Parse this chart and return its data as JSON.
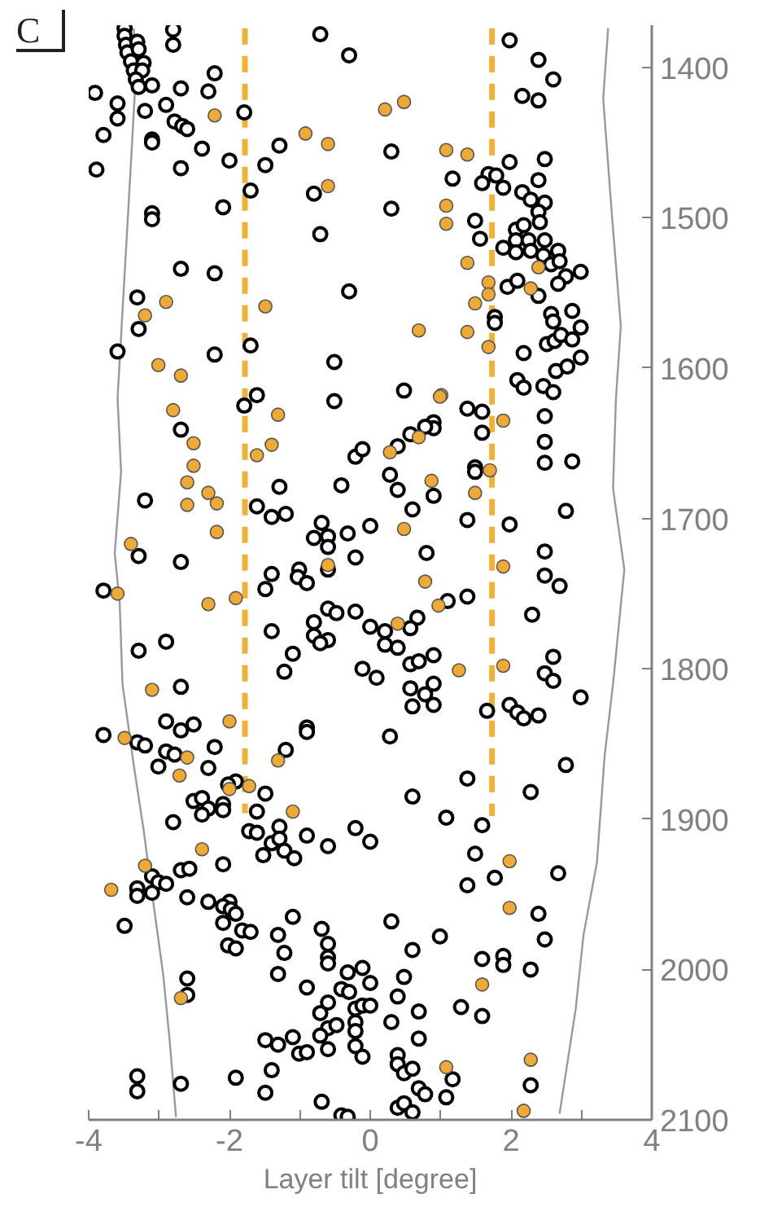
{
  "chart_data": {
    "type": "scatter",
    "xlabel": "Layer tilt [degree]",
    "annotations": [
      "C"
    ],
    "xlim": [
      -4,
      4
    ],
    "ylim": [
      2100,
      1372
    ],
    "xticks": [
      -4,
      {
        "value": -3,
        "label": null
      },
      -2,
      {
        "value": -1,
        "label": null
      },
      0,
      {
        "value": 1,
        "label": null
      },
      2,
      {
        "value": 3,
        "label": null
      },
      4
    ],
    "yticks": [
      1400,
      1500,
      1600,
      1700,
      1800,
      1900,
      2000,
      2100
    ],
    "grid": false,
    "marker": "circle",
    "series": [
      {
        "type": "line",
        "marker": "none",
        "color": "#999999",
        "line_style": "solid",
        "x": [
          -3.36,
          -3.33,
          -3.4,
          -3.59,
          -3.54,
          -3.63,
          -3.56,
          -3.52,
          -3.36,
          -3.22,
          -3.13,
          -2.94,
          -2.85,
          -2.76
        ],
        "values": [
          1374,
          1404,
          1464,
          1620,
          1669,
          1723,
          1756,
          1810,
          1864,
          1907,
          1939,
          2004,
          2047,
          2098
        ]
      },
      {
        "type": "line",
        "marker": "none",
        "color": "#999999",
        "line_style": "solid",
        "x": [
          3.38,
          3.31,
          3.43,
          3.56,
          3.49,
          3.45,
          3.61,
          3.45,
          3.33,
          3.22,
          3.03,
          2.92,
          2.69
        ],
        "values": [
          1374,
          1421,
          1496,
          1572,
          1621,
          1680,
          1734,
          1810,
          1858,
          1929,
          1977,
          2026,
          2096
        ]
      },
      {
        "type": "line",
        "marker": "none",
        "color": "#f2b035",
        "line_style": "dashed",
        "x": [
          -1.78,
          -1.78
        ],
        "values": [
          1374,
          1896
        ]
      },
      {
        "type": "line",
        "marker": "none",
        "color": "#f2b035",
        "line_style": "dashed",
        "x": [
          1.73,
          1.73
        ],
        "values": [
          1374,
          1898
        ]
      },
      {
        "color": "#000000",
        "x": [
          -3.49,
          -3.49,
          -3.47,
          -3.31,
          -3.45,
          -3.29,
          -3.4,
          -3.22,
          -3.36,
          -3.24,
          -3.33,
          -3.29,
          -3.1,
          -2.8,
          -2.8,
          -2.21,
          -2.69,
          -2.3,
          -3.91,
          -3.59,
          -3.59,
          -3.2,
          -2.9,
          -2.78,
          -2.67,
          -2.6,
          -1.79,
          -3.79,
          -3.1,
          -3.1,
          -2.39,
          -2.0,
          -1.29,
          -1.49,
          -3.89,
          -2.69,
          -1.7,
          -0.8,
          -2.09,
          -3.1,
          -3.1,
          -0.71,
          -2.69,
          -2.21,
          -0.3,
          -3.31,
          -3.29,
          -3.59,
          -2.21,
          -1.7,
          -0.51,
          -0.71,
          -0.3,
          1.98,
          2.39,
          2.6,
          2.16,
          2.39,
          0.3,
          1.17,
          1.68,
          1.79,
          1.59,
          1.89,
          1.98,
          2.48,
          2.39,
          2.16,
          2.28,
          2.48,
          0.3,
          1.49,
          2.39,
          2.41,
          2.07,
          2.18,
          1.56,
          1.89,
          2.07,
          2.25,
          2.48,
          2.07,
          2.28,
          2.46,
          2.67,
          2.57,
          2.69,
          2.78,
          2.99,
          2.67,
          1.95,
          2.09,
          2.39,
          2.57,
          2.6,
          2.87,
          1.77,
          1.77,
          2.99,
          2.51,
          2.62,
          2.71,
          2.87,
          2.18,
          2.64,
          2.8,
          2.99,
          2.09,
          2.18,
          2.46,
          2.6,
          0.48,
          -1.61,
          -1.79,
          -0.51,
          -2.69,
          -0.21,
          -0.11,
          -0.41,
          -1.29,
          -3.2,
          -1.61,
          -1.4,
          -1.2,
          -0.69,
          -0.8,
          -0.6,
          -0.6,
          -0.6,
          -0.32,
          0.0,
          -0.21,
          -3.29,
          -2.69,
          -1.4,
          -1.49,
          -1.01,
          -1.03,
          -0.9,
          -3.79,
          -0.6,
          -0.48,
          -0.21,
          0.0,
          -0.8,
          -1.4,
          -0.8,
          -0.6,
          -0.71,
          -3.29,
          -2.9,
          -1.1,
          -1.22,
          -0.11,
          0.09,
          -2.69,
          -3.79,
          -2.9,
          -2.69,
          -2.51,
          -3.31,
          -3.2,
          -2.21,
          -2.9,
          -2.78,
          -3.01,
          -2.3,
          -0.9,
          -0.9,
          -1.2,
          1.38,
          1.59,
          0.9,
          0.9,
          0.78,
          0.57,
          0.39,
          2.48,
          2.48,
          2.48,
          2.87,
          1.59,
          1.49,
          1.49,
          0.28,
          0.39,
          0.9,
          0.6,
          1.38,
          1.98,
          2.78,
          0.8,
          2.48,
          2.48,
          2.69,
          1.1,
          1.38,
          2.3,
          0.67,
          0.57,
          0.21,
          0.21,
          0.39,
          0.57,
          0.69,
          0.9,
          0.57,
          0.9,
          0.78,
          0.6,
          0.9,
          2.6,
          2.48,
          2.6,
          2.99,
          1.66,
          1.98,
          2.09,
          2.18,
          2.39,
          0.28,
          2.78,
          -1.91,
          -2.02,
          -1.49,
          -2.51,
          -2.39,
          -2.3,
          -2.09,
          -2.09,
          -2.39,
          -1.61,
          -2.8,
          -1.72,
          -1.61,
          -1.29,
          -1.4,
          -1.29,
          -1.52,
          -1.22,
          -1.08,
          -0.9,
          -0.6,
          -0.21,
          0.0,
          -2.09,
          -2.69,
          -2.57,
          -3.1,
          -3.01,
          -2.9,
          -3.31,
          -3.31,
          -3.1,
          -2.6,
          -2.3,
          -2.0,
          -2.09,
          -1.98,
          -1.91,
          -2.09,
          -3.49,
          -1.1,
          -1.82,
          -1.7,
          -1.31,
          -1.22,
          -0.69,
          -0.6,
          -0.6,
          -0.6,
          -2.02,
          -1.91,
          -1.31,
          -0.9,
          -0.32,
          -0.11,
          0.0,
          -0.41,
          -0.3,
          -2.6,
          -2.6,
          -0.6,
          -0.71,
          -0.6,
          -0.48,
          -0.71,
          -0.21,
          -0.11,
          -0.21,
          -0.21,
          -0.21,
          -0.11,
          -0.6,
          -1.49,
          -1.31,
          -1.1,
          -1.01,
          -0.9,
          -1.4,
          -1.49,
          -1.91,
          -2.69,
          -3.31,
          -3.31,
          -0.69,
          -0.41,
          -0.32,
          1.38,
          2.28,
          0.6,
          1.08,
          1.59,
          1.49,
          2.67,
          1.77,
          1.38,
          2.39,
          2.48,
          0.3,
          0.99,
          0.6,
          1.59,
          1.89,
          1.89,
          2.28,
          0.48,
          0.0,
          0.39,
          0.3,
          0.69,
          1.29,
          1.59,
          0.69,
          0.39,
          0.39,
          0.48,
          0.6,
          1.17,
          0.69,
          0.78,
          1.08,
          2.28,
          0.39,
          0.48,
          0.6
        ],
        "values": [
          1374,
          1379,
          1385,
          1383,
          1390,
          1388,
          1396,
          1397,
          1402,
          1402,
          1408,
          1413,
          1412,
          1375,
          1385,
          1404,
          1414,
          1416,
          1417,
          1424,
          1434,
          1429,
          1425,
          1436,
          1439,
          1441,
          1430,
          1445,
          1448,
          1450,
          1454,
          1462,
          1452,
          1465,
          1468,
          1467,
          1482,
          1484,
          1493,
          1497,
          1501,
          1511,
          1534,
          1537,
          1549,
          1553,
          1574,
          1589,
          1591,
          1585,
          1596,
          1378,
          1392,
          1382,
          1395,
          1408,
          1419,
          1422,
          1456,
          1474,
          1471,
          1472,
          1477,
          1480,
          1463,
          1461,
          1475,
          1483,
          1488,
          1490,
          1494,
          1502,
          1496,
          1503,
          1508,
          1505,
          1514,
          1520,
          1515,
          1515,
          1515,
          1523,
          1522,
          1525,
          1522,
          1531,
          1529,
          1539,
          1536,
          1544,
          1546,
          1542,
          1552,
          1564,
          1569,
          1562,
          1566,
          1570,
          1573,
          1584,
          1582,
          1578,
          1581,
          1590,
          1602,
          1599,
          1593,
          1608,
          1613,
          1612,
          1616,
          1615,
          1618,
          1625,
          1622,
          1641,
          1659,
          1654,
          1678,
          1679,
          1688,
          1692,
          1699,
          1697,
          1703,
          1713,
          1712,
          1719,
          1734,
          1710,
          1705,
          1726,
          1725,
          1729,
          1737,
          1747,
          1734,
          1739,
          1743,
          1748,
          1760,
          1763,
          1762,
          1772,
          1769,
          1775,
          1778,
          1781,
          1783,
          1788,
          1782,
          1790,
          1802,
          1800,
          1806,
          1812,
          1844,
          1835,
          1841,
          1837,
          1849,
          1851,
          1852,
          1855,
          1857,
          1865,
          1866,
          1839,
          1842,
          1854,
          1627,
          1629,
          1636,
          1640,
          1639,
          1644,
          1652,
          1632,
          1649,
          1663,
          1662,
          1643,
          1666,
          1669,
          1671,
          1681,
          1685,
          1694,
          1701,
          1704,
          1695,
          1723,
          1722,
          1738,
          1745,
          1755,
          1752,
          1764,
          1766,
          1773,
          1775,
          1784,
          1786,
          1797,
          1795,
          1791,
          1813,
          1810,
          1817,
          1825,
          1824,
          1792,
          1803,
          1808,
          1819,
          1828,
          1824,
          1829,
          1833,
          1831,
          1845,
          1864,
          1875,
          1877,
          1883,
          1888,
          1886,
          1893,
          1890,
          1894,
          1897,
          1895,
          1902,
          1908,
          1909,
          1905,
          1916,
          1913,
          1924,
          1921,
          1926,
          1911,
          1918,
          1906,
          1915,
          1930,
          1934,
          1933,
          1938,
          1942,
          1943,
          1946,
          1951,
          1949,
          1952,
          1955,
          1955,
          1958,
          1960,
          1963,
          1969,
          1971,
          1965,
          1974,
          1975,
          1977,
          1989,
          1973,
          1983,
          1992,
          1996,
          1984,
          1986,
          2003,
          2012,
          2002,
          1999,
          2009,
          2013,
          2015,
          2006,
          2017,
          2022,
          2029,
          2039,
          2037,
          2044,
          2026,
          2024,
          2035,
          2041,
          2051,
          2058,
          2053,
          2047,
          2050,
          2045,
          2056,
          2055,
          2067,
          2082,
          2072,
          2076,
          2071,
          2081,
          2088,
          2097,
          2098,
          1873,
          1882,
          1885,
          1899,
          1904,
          1923,
          1936,
          1939,
          1944,
          1963,
          1980,
          1968,
          1978,
          1987,
          1993,
          1991,
          1997,
          2000,
          2005,
          2024,
          2018,
          2035,
          2028,
          2025,
          2031,
          2046,
          2057,
          2063,
          2069,
          2066,
          2073,
          2079,
          2083,
          2085,
          2077,
          2092,
          2089,
          2095
        ]
      },
      {
        "color": "#eeaa35",
        "x": [
          -2.21,
          -0.92,
          -0.6,
          -0.6,
          -2.9,
          -3.2,
          -1.49,
          -3.01,
          -2.69,
          0.21,
          0.48,
          1.08,
          1.38,
          1.08,
          1.08,
          1.38,
          2.39,
          1.68,
          2.28,
          1.49,
          1.68,
          0.69,
          1.38,
          1.68,
          1.01,
          -2.8,
          -2.51,
          -2.51,
          -1.31,
          -1.4,
          -1.61,
          -2.6,
          -2.3,
          -2.18,
          -2.6,
          -2.18,
          -3.4,
          -0.6,
          -3.59,
          -2.3,
          -1.91,
          -3.1,
          -2.0,
          -3.49,
          -2.6,
          -1.31,
          0.99,
          1.89,
          0.28,
          0.69,
          0.87,
          1.49,
          1.7,
          0.48,
          1.89,
          0.78,
          0.97,
          0.39,
          1.26,
          1.89,
          -2.71,
          -2.0,
          -1.72,
          -1.1,
          -2.39,
          -3.2,
          -3.68,
          -2.69,
          1.98,
          1.98,
          1.59,
          1.08,
          2.28,
          2.18
        ],
        "values": [
          1432,
          1444,
          1451,
          1479,
          1556,
          1565,
          1559,
          1598,
          1605,
          1428,
          1423,
          1455,
          1458,
          1492,
          1504,
          1530,
          1533,
          1543,
          1547,
          1557,
          1551,
          1575,
          1576,
          1586,
          1618,
          1628,
          1650,
          1665,
          1631,
          1651,
          1658,
          1676,
          1683,
          1690,
          1691,
          1709,
          1717,
          1731,
          1750,
          1757,
          1753,
          1814,
          1835,
          1846,
          1859,
          1861,
          1619,
          1635,
          1656,
          1646,
          1675,
          1683,
          1668,
          1707,
          1732,
          1742,
          1758,
          1770,
          1801,
          1798,
          1871,
          1880,
          1878,
          1895,
          1920,
          1931,
          1947,
          2019,
          1928,
          1959,
          2010,
          2065,
          2060,
          2094
        ]
      }
    ]
  }
}
